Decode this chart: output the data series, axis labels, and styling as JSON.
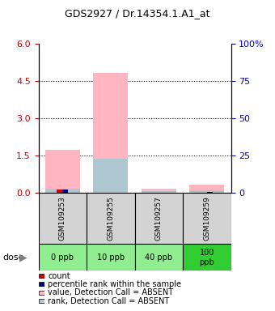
{
  "title": "GDS2927 / Dr.14354.1.A1_at",
  "samples": [
    "GSM109253",
    "GSM109255",
    "GSM109257",
    "GSM109259"
  ],
  "doses": [
    "0 ppb",
    "10 ppb",
    "40 ppb",
    "100\nppb"
  ],
  "dose_colors": [
    "#90ee90",
    "#90ee90",
    "#90ee90",
    "#32cd32"
  ],
  "bar_values_pink": [
    1.72,
    4.82,
    0.15,
    0.32
  ],
  "bar_values_blue_rank": [
    0.15,
    1.38,
    0.06,
    0.1
  ],
  "bar_values_red": [
    0.12,
    0.0,
    0.0,
    0.0
  ],
  "bar_values_blue_dark": [
    0.12,
    0.0,
    0.0,
    0.05
  ],
  "ylim_left": [
    0,
    6
  ],
  "ylim_right": [
    0,
    100
  ],
  "yticks_left": [
    0,
    1.5,
    3,
    4.5,
    6
  ],
  "yticks_right": [
    0,
    25,
    50,
    75,
    100
  ],
  "ylabel_left_color": "#cc0000",
  "ylabel_right_color": "#0000cc",
  "legend_items": [
    {
      "label": "count",
      "color": "#cc0000"
    },
    {
      "label": "percentile rank within the sample",
      "color": "#00008b"
    },
    {
      "label": "value, Detection Call = ABSENT",
      "color": "#ffb6c1"
    },
    {
      "label": "rank, Detection Call = ABSENT",
      "color": "#aec6cf"
    }
  ]
}
